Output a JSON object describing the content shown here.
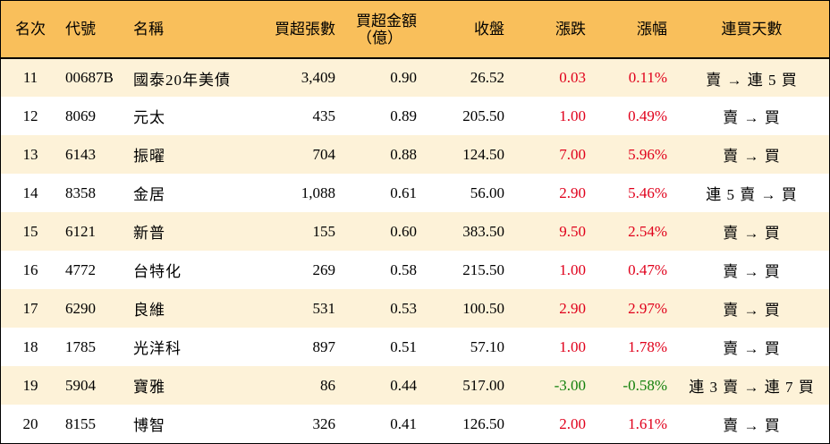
{
  "headers": {
    "rank": "名次",
    "code": "代號",
    "name": "名稱",
    "net_buy_lots": "買超張數",
    "net_buy_amount_line1": "買超金額",
    "net_buy_amount_line2": "（億）",
    "close": "收盤",
    "change": "漲跌",
    "change_pct": "漲幅",
    "consecutive_days": "連買天數"
  },
  "colors": {
    "header_bg": "#f9bf5b",
    "odd_row_bg": "#fdf2d8",
    "even_row_bg": "#ffffff",
    "up": "#e0001b",
    "down": "#12800b"
  },
  "rows": [
    {
      "rank": "11",
      "code": "00687B",
      "name": "國泰20年美債",
      "net_buy_lots": "3,409",
      "net_buy_amount": "0.90",
      "close": "26.52",
      "change": "0.03",
      "change_pct": "0.11%",
      "direction": "up",
      "consecutive_days": "賣 → 連 5 買"
    },
    {
      "rank": "12",
      "code": "8069",
      "name": "元太",
      "net_buy_lots": "435",
      "net_buy_amount": "0.89",
      "close": "205.50",
      "change": "1.00",
      "change_pct": "0.49%",
      "direction": "up",
      "consecutive_days": "賣 → 買"
    },
    {
      "rank": "13",
      "code": "6143",
      "name": "振曜",
      "net_buy_lots": "704",
      "net_buy_amount": "0.88",
      "close": "124.50",
      "change": "7.00",
      "change_pct": "5.96%",
      "direction": "up",
      "consecutive_days": "賣 → 買"
    },
    {
      "rank": "14",
      "code": "8358",
      "name": "金居",
      "net_buy_lots": "1,088",
      "net_buy_amount": "0.61",
      "close": "56.00",
      "change": "2.90",
      "change_pct": "5.46%",
      "direction": "up",
      "consecutive_days": "連 5 賣 → 買"
    },
    {
      "rank": "15",
      "code": "6121",
      "name": "新普",
      "net_buy_lots": "155",
      "net_buy_amount": "0.60",
      "close": "383.50",
      "change": "9.50",
      "change_pct": "2.54%",
      "direction": "up",
      "consecutive_days": "賣 → 買"
    },
    {
      "rank": "16",
      "code": "4772",
      "name": "台特化",
      "net_buy_lots": "269",
      "net_buy_amount": "0.58",
      "close": "215.50",
      "change": "1.00",
      "change_pct": "0.47%",
      "direction": "up",
      "consecutive_days": "賣 → 買"
    },
    {
      "rank": "17",
      "code": "6290",
      "name": "良維",
      "net_buy_lots": "531",
      "net_buy_amount": "0.53",
      "close": "100.50",
      "change": "2.90",
      "change_pct": "2.97%",
      "direction": "up",
      "consecutive_days": "賣 → 買"
    },
    {
      "rank": "18",
      "code": "1785",
      "name": "光洋科",
      "net_buy_lots": "897",
      "net_buy_amount": "0.51",
      "close": "57.10",
      "change": "1.00",
      "change_pct": "1.78%",
      "direction": "up",
      "consecutive_days": "賣 → 買"
    },
    {
      "rank": "19",
      "code": "5904",
      "name": "寶雅",
      "net_buy_lots": "86",
      "net_buy_amount": "0.44",
      "close": "517.00",
      "change": "-3.00",
      "change_pct": "-0.58%",
      "direction": "down",
      "consecutive_days": "連 3 賣 → 連 7 買"
    },
    {
      "rank": "20",
      "code": "8155",
      "name": "博智",
      "net_buy_lots": "326",
      "net_buy_amount": "0.41",
      "close": "126.50",
      "change": "2.00",
      "change_pct": "1.61%",
      "direction": "up",
      "consecutive_days": "賣 → 買"
    }
  ]
}
